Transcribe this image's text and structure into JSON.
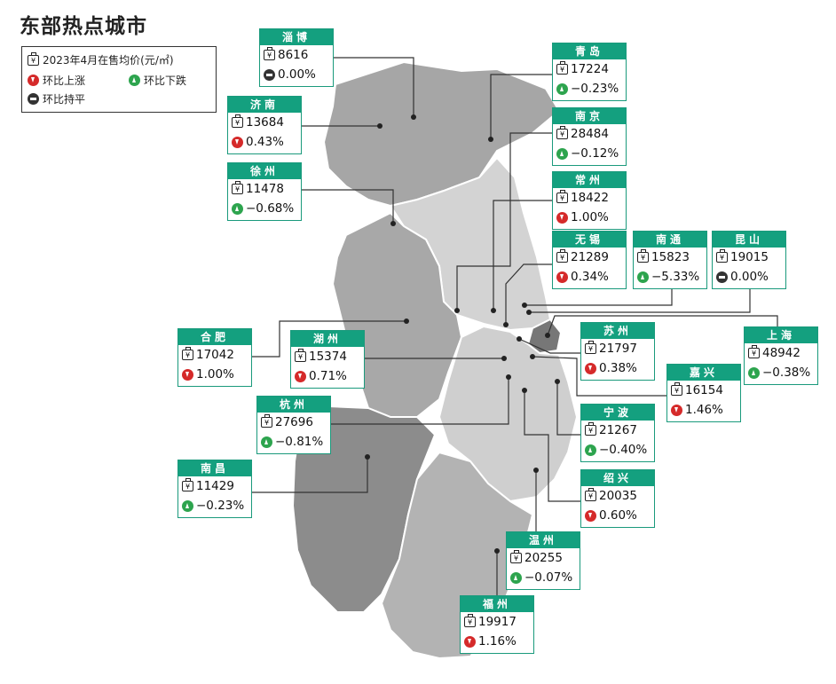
{
  "title": "东部热点城市",
  "legend": {
    "price_label": "2023年4月在售均价(元/㎡)",
    "up_label": "环比上涨",
    "down_label": "环比下跌",
    "flat_label": "环比持平"
  },
  "colors": {
    "header": "#14a07f",
    "up": "#d52a2a",
    "down": "#2da44e",
    "flat": "#333333"
  },
  "cities": [
    {
      "name": "淄博",
      "price": "8616",
      "change": "0.00%",
      "trend": "flat"
    },
    {
      "name": "青岛",
      "price": "17224",
      "change": "−0.23%",
      "trend": "down"
    },
    {
      "name": "济南",
      "price": "13684",
      "change": "0.43%",
      "trend": "up"
    },
    {
      "name": "南京",
      "price": "28484",
      "change": "−0.12%",
      "trend": "down"
    },
    {
      "name": "徐州",
      "price": "11478",
      "change": "−0.68%",
      "trend": "down"
    },
    {
      "name": "常州",
      "price": "18422",
      "change": "1.00%",
      "trend": "up"
    },
    {
      "name": "无锡",
      "price": "21289",
      "change": "0.34%",
      "trend": "up"
    },
    {
      "name": "南通",
      "price": "15823",
      "change": "−5.33%",
      "trend": "down"
    },
    {
      "name": "昆山",
      "price": "19015",
      "change": "0.00%",
      "trend": "flat"
    },
    {
      "name": "合肥",
      "price": "17042",
      "change": "1.00%",
      "trend": "up"
    },
    {
      "name": "湖州",
      "price": "15374",
      "change": "0.71%",
      "trend": "up"
    },
    {
      "name": "苏州",
      "price": "21797",
      "change": "0.38%",
      "trend": "up"
    },
    {
      "name": "上海",
      "price": "48942",
      "change": "−0.38%",
      "trend": "down"
    },
    {
      "name": "嘉兴",
      "price": "16154",
      "change": "1.46%",
      "trend": "up"
    },
    {
      "name": "杭州",
      "price": "27696",
      "change": "−0.81%",
      "trend": "down"
    },
    {
      "name": "宁波",
      "price": "21267",
      "change": "−0.40%",
      "trend": "down"
    },
    {
      "name": "南昌",
      "price": "11429",
      "change": "−0.23%",
      "trend": "down"
    },
    {
      "name": "绍兴",
      "price": "20035",
      "change": "0.60%",
      "trend": "up"
    },
    {
      "name": "温州",
      "price": "20255",
      "change": "−0.07%",
      "trend": "down"
    },
    {
      "name": "福州",
      "price": "19917",
      "change": "1.16%",
      "trend": "up"
    }
  ]
}
